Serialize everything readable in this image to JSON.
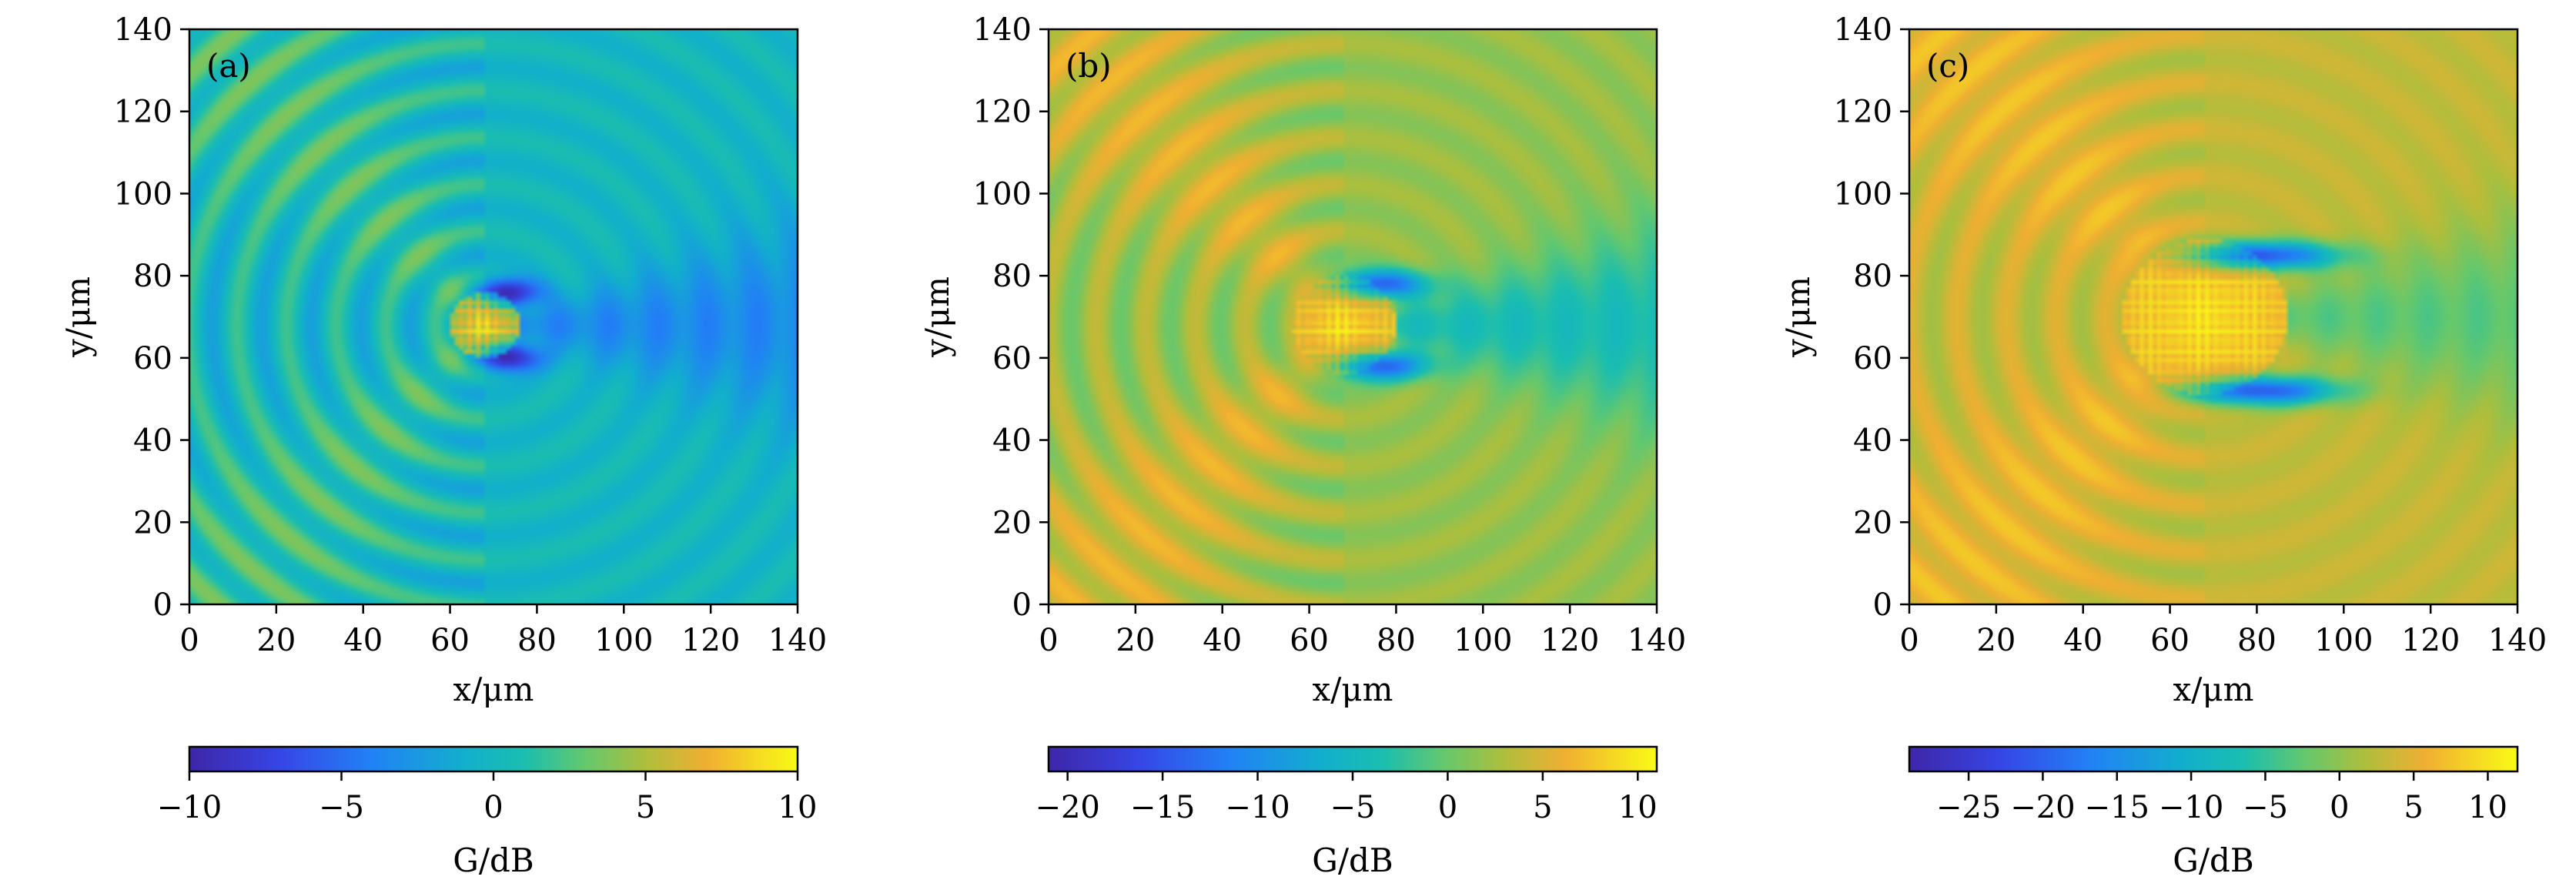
{
  "chart_data": [
    {
      "type": "heatmap",
      "panel_label": "(a)",
      "xlabel": "x/μm",
      "ylabel": "y/μm",
      "xlim": [
        0,
        140
      ],
      "ylim": [
        0,
        140
      ],
      "xticks": [
        "0",
        "20",
        "40",
        "60",
        "80",
        "100",
        "120",
        "140"
      ],
      "yticks": [
        "0",
        "20",
        "40",
        "60",
        "80",
        "100",
        "120",
        "140"
      ],
      "colorbar": {
        "label": "G/dB",
        "range": [
          -10,
          10
        ],
        "ticks": [
          "−10",
          "−5",
          "0",
          "5",
          "10"
        ],
        "tick_values": [
          -10,
          -5,
          0,
          5,
          10
        ]
      },
      "field": {
        "background": 0,
        "bright_center": [
          68,
          68
        ],
        "dark_lobes_y": [
          76,
          60
        ],
        "wake": "negative",
        "ring_amplitude": 2
      }
    },
    {
      "type": "heatmap",
      "panel_label": "(b)",
      "xlabel": "x/μm",
      "ylabel": "y/μm",
      "xlim": [
        0,
        140
      ],
      "ylim": [
        0,
        140
      ],
      "xticks": [
        "0",
        "20",
        "40",
        "60",
        "80",
        "100",
        "120",
        "140"
      ],
      "yticks": [
        "0",
        "20",
        "40",
        "60",
        "80",
        "100",
        "120",
        "140"
      ],
      "colorbar": {
        "label": "G/dB",
        "range": [
          -21,
          11
        ],
        "ticks": [
          "−20",
          "−15",
          "−10",
          "−5",
          "0",
          "5",
          "10"
        ],
        "tick_values": [
          -20,
          -15,
          -10,
          -5,
          0,
          5,
          10
        ]
      },
      "field": {
        "background": 2,
        "bright_center": [
          68,
          68
        ],
        "dark_lobes_y": [
          78,
          58
        ],
        "wake": "negative",
        "ring_amplitude": 2
      }
    },
    {
      "type": "heatmap",
      "panel_label": "(c)",
      "xlabel": "x/μm",
      "ylabel": "y/μm",
      "xlim": [
        0,
        140
      ],
      "ylim": [
        0,
        140
      ],
      "xticks": [
        "0",
        "20",
        "40",
        "60",
        "80",
        "100",
        "120",
        "140"
      ],
      "yticks": [
        "0",
        "20",
        "40",
        "60",
        "80",
        "100",
        "120",
        "140"
      ],
      "colorbar": {
        "label": "G/dB",
        "range": [
          -29,
          12
        ],
        "ticks": [
          "−25",
          "−20",
          "−15",
          "−10",
          "−5",
          "0",
          "5",
          "10"
        ],
        "tick_values": [
          -25,
          -20,
          -15,
          -10,
          -5,
          0,
          5,
          10
        ]
      },
      "field": {
        "background": 3,
        "bright_center": [
          68,
          70
        ],
        "dark_lobes_y": [
          85,
          52
        ],
        "wake": "negative",
        "ring_amplitude": 2
      }
    }
  ]
}
